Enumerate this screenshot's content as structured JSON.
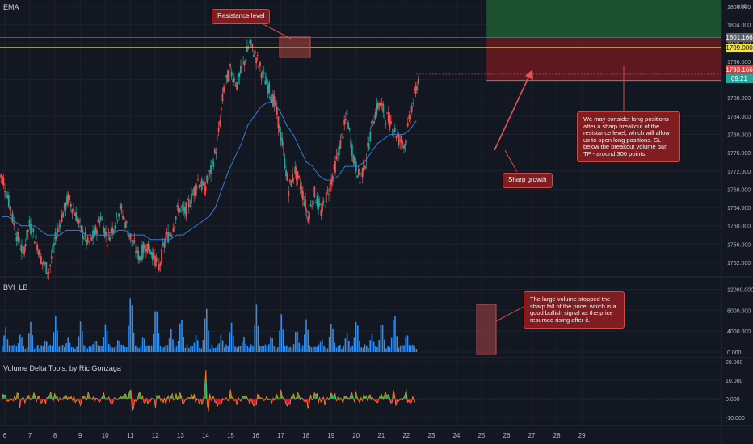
{
  "panes": {
    "price_label": "EMA",
    "volume_label": "BVI_LB",
    "delta_label": "Volume Delta Tools, by Ric Gonzaga"
  },
  "currency": "USD",
  "price_tags": {
    "upper": {
      "text": "1801.166",
      "bg": "#5d606b",
      "fg": "#ffffff"
    },
    "resistance": {
      "text": "1799.000",
      "bg": "#f5e342",
      "fg": "#131722"
    },
    "last": {
      "text": "1793.166",
      "bg": "#e03a3e",
      "fg": "#ffffff"
    },
    "countdown": {
      "text": "09:21",
      "bg": "#26a69a",
      "fg": "#ffffff"
    }
  },
  "annotations": {
    "resistance": "Resistance level",
    "sharp_growth": "Sharp growth",
    "long_note": "We may consider long positions after a sharp breakout of the resistance level, which will allow us to open long positions. SL - below the breakout volume bar. TP - around 300 points.",
    "volume_note": "The large volume stopped the sharp fall of the price, which is a good bullish signal as the price resumed rising after it."
  },
  "colors": {
    "background": "#131722",
    "up": "#26a69a",
    "down": "#ef5350",
    "ema": "#2f7ed8",
    "volume": "#2e8ef0",
    "resistance_line": "#f5e342",
    "target_zone": "#1f5a30",
    "stop_zone": "#6b1a1f",
    "delta_pos": "#00e676",
    "delta_neg": "#ff1744",
    "delta_line": "#f57f17"
  },
  "chart_data": [
    {
      "type": "line",
      "title": "EMA",
      "x_ticks": [
        "6",
        "7",
        "8",
        "9",
        "10",
        "11",
        "12",
        "13",
        "14",
        "15",
        "16",
        "17",
        "18",
        "19",
        "20",
        "21",
        "22",
        "23",
        "24",
        "25",
        "26",
        "27",
        "28",
        "29"
      ],
      "ylim": [
        1749,
        1806
      ],
      "y_ticks": [
        1752,
        1756,
        1760,
        1764,
        1768,
        1772,
        1776,
        1780,
        1784,
        1788,
        1792,
        1796,
        1800,
        1804,
        1808
      ],
      "resistance": 1799.0,
      "last_price": 1793.166,
      "target_zone": [
        1801.166,
        1808
      ],
      "stop_zone": [
        1791.8,
        1801.166
      ],
      "series": [
        {
          "key": "close",
          "values": [
            1770,
            1764,
            1758,
            1754,
            1760,
            1757,
            1752,
            1750,
            1757,
            1762,
            1766,
            1763,
            1759,
            1756,
            1758,
            1762,
            1757,
            1760,
            1764,
            1760,
            1756,
            1753,
            1756,
            1754,
            1751,
            1757,
            1759,
            1764,
            1763,
            1766,
            1770,
            1768,
            1772,
            1778,
            1790,
            1794,
            1791,
            1795,
            1800,
            1797,
            1793,
            1790,
            1786,
            1778,
            1768,
            1772,
            1768,
            1762,
            1767,
            1763,
            1767,
            1772,
            1778,
            1784,
            1775,
            1770,
            1775,
            1783,
            1787,
            1784,
            1782,
            1779,
            1778,
            1786,
            1792
          ]
        },
        {
          "key": "ema",
          "values": [
            1762,
            1762,
            1761,
            1760,
            1760,
            1760,
            1759,
            1758,
            1758,
            1758,
            1759,
            1759,
            1759,
            1758,
            1758,
            1758,
            1758,
            1758,
            1759,
            1759,
            1758,
            1758,
            1758,
            1757,
            1757,
            1757,
            1757,
            1758,
            1758,
            1759,
            1760,
            1761,
            1762,
            1764,
            1768,
            1772,
            1775,
            1778,
            1782,
            1784,
            1786,
            1787,
            1787,
            1785,
            1782,
            1780,
            1777,
            1774,
            1773,
            1771,
            1770,
            1770,
            1771,
            1773,
            1773,
            1773,
            1774,
            1776,
            1778,
            1779,
            1780,
            1780,
            1780,
            1781,
            1783
          ]
        }
      ]
    },
    {
      "type": "bar",
      "title": "BVI_LB",
      "ylim": [
        0,
        13000
      ],
      "y_ticks": [
        0,
        4000,
        8000,
        12000
      ],
      "spikes": [
        {
          "x": 6.0,
          "value": 5200
        },
        {
          "x": 6.6,
          "value": 3800
        },
        {
          "x": 7.0,
          "value": 6000
        },
        {
          "x": 7.6,
          "value": 2500
        },
        {
          "x": 8.0,
          "value": 7200
        },
        {
          "x": 8.5,
          "value": 3000
        },
        {
          "x": 9.0,
          "value": 6500
        },
        {
          "x": 9.6,
          "value": 2500
        },
        {
          "x": 10.0,
          "value": 6200
        },
        {
          "x": 10.5,
          "value": 2800
        },
        {
          "x": 11.0,
          "value": 12800
        },
        {
          "x": 11.5,
          "value": 3500
        },
        {
          "x": 12.0,
          "value": 10400
        },
        {
          "x": 12.6,
          "value": 4500
        },
        {
          "x": 13.0,
          "value": 7600
        },
        {
          "x": 13.6,
          "value": 3500
        },
        {
          "x": 14.0,
          "value": 9600
        },
        {
          "x": 14.6,
          "value": 3500
        },
        {
          "x": 15.0,
          "value": 6300
        },
        {
          "x": 15.5,
          "value": 3000
        },
        {
          "x": 16.0,
          "value": 9600
        },
        {
          "x": 16.6,
          "value": 3500
        },
        {
          "x": 17.0,
          "value": 7600
        },
        {
          "x": 17.6,
          "value": 5000
        },
        {
          "x": 18.0,
          "value": 7000
        },
        {
          "x": 18.6,
          "value": 2800
        },
        {
          "x": 19.0,
          "value": 6500
        },
        {
          "x": 19.6,
          "value": 4000
        },
        {
          "x": 20.0,
          "value": 7200
        },
        {
          "x": 20.6,
          "value": 3500
        },
        {
          "x": 21.0,
          "value": 6800
        },
        {
          "x": 21.5,
          "value": 8600
        },
        {
          "x": 22.0,
          "value": 3700
        }
      ]
    },
    {
      "type": "line",
      "title": "Volume Delta Tools, by Ric Gonzaga",
      "ylim": [
        -13,
        22
      ],
      "y_ticks": [
        20,
        10,
        0,
        -10
      ],
      "spikes": [
        {
          "x": 6.0,
          "value": 4
        },
        {
          "x": 6.6,
          "value": -6
        },
        {
          "x": 8.0,
          "value": 4
        },
        {
          "x": 9.0,
          "value": -5
        },
        {
          "x": 11.0,
          "value": 9
        },
        {
          "x": 11.1,
          "value": -12
        },
        {
          "x": 12.0,
          "value": -5
        },
        {
          "x": 13.0,
          "value": 5
        },
        {
          "x": 14.0,
          "value": 21
        },
        {
          "x": 14.1,
          "value": -10
        },
        {
          "x": 15.0,
          "value": 6
        },
        {
          "x": 16.0,
          "value": -6
        },
        {
          "x": 17.0,
          "value": 5
        },
        {
          "x": 18.1,
          "value": -8
        },
        {
          "x": 19.0,
          "value": 4
        },
        {
          "x": 20.0,
          "value": 5
        },
        {
          "x": 21.0,
          "value": 4
        },
        {
          "x": 21.5,
          "value": 7
        },
        {
          "x": 21.6,
          "value": -5
        },
        {
          "x": 22.0,
          "value": 5
        }
      ]
    }
  ]
}
